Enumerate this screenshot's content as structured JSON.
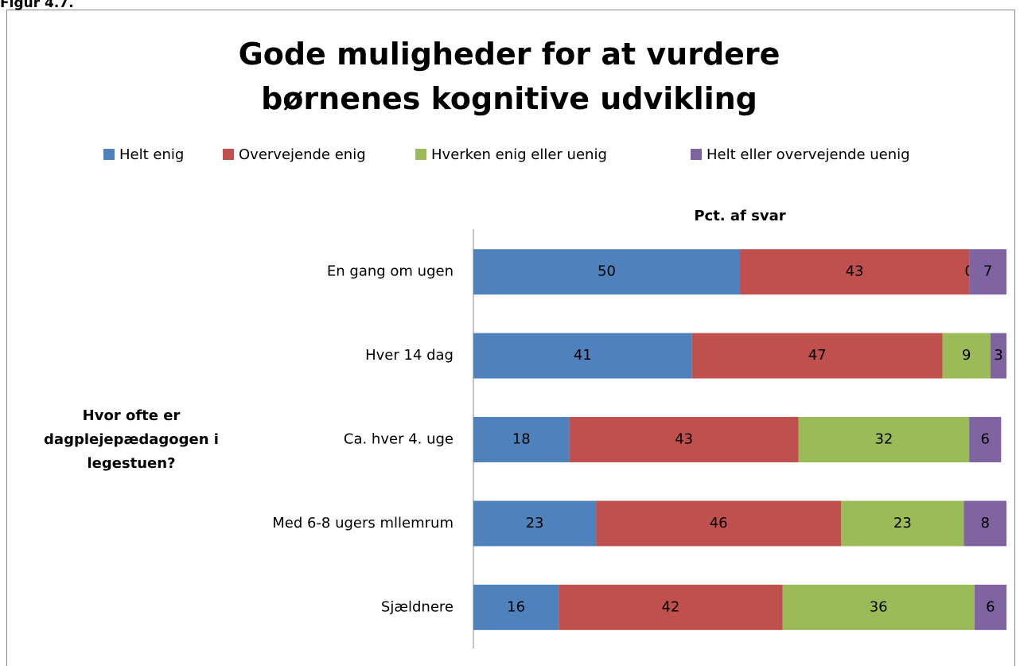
{
  "figure_label": "Figur 4.7.",
  "chart_data": {
    "type": "stacked_bar_horizontal",
    "title": "Gode muligheder for at vurdere børnenes kognitive udvikling",
    "x_label": "Pct. af svar",
    "y_label": "Hvor ofte er dagplejepædagogen i legestuen?",
    "categories": [
      "En gang om ugen",
      "Hver 14 dag",
      "Ca. hver 4. uge",
      "Med 6-8 ugers mllemrum",
      "Sjældnere"
    ],
    "xlim": [
      0,
      100
    ],
    "legend": "top",
    "series": [
      {
        "name": "Helt enig",
        "color": "#4f81bd",
        "values": [
          50,
          41,
          18,
          23,
          16
        ]
      },
      {
        "name": "Overvejende enig",
        "color": "#c0504d",
        "values": [
          43,
          47,
          43,
          46,
          42
        ]
      },
      {
        "name": "Hverken enig eller uenig",
        "color": "#9bbb59",
        "values": [
          0,
          9,
          32,
          23,
          36
        ]
      },
      {
        "name": "Helt eller overvejende uenig",
        "color": "#8064a2",
        "values": [
          7,
          3,
          6,
          8,
          6
        ]
      }
    ]
  }
}
